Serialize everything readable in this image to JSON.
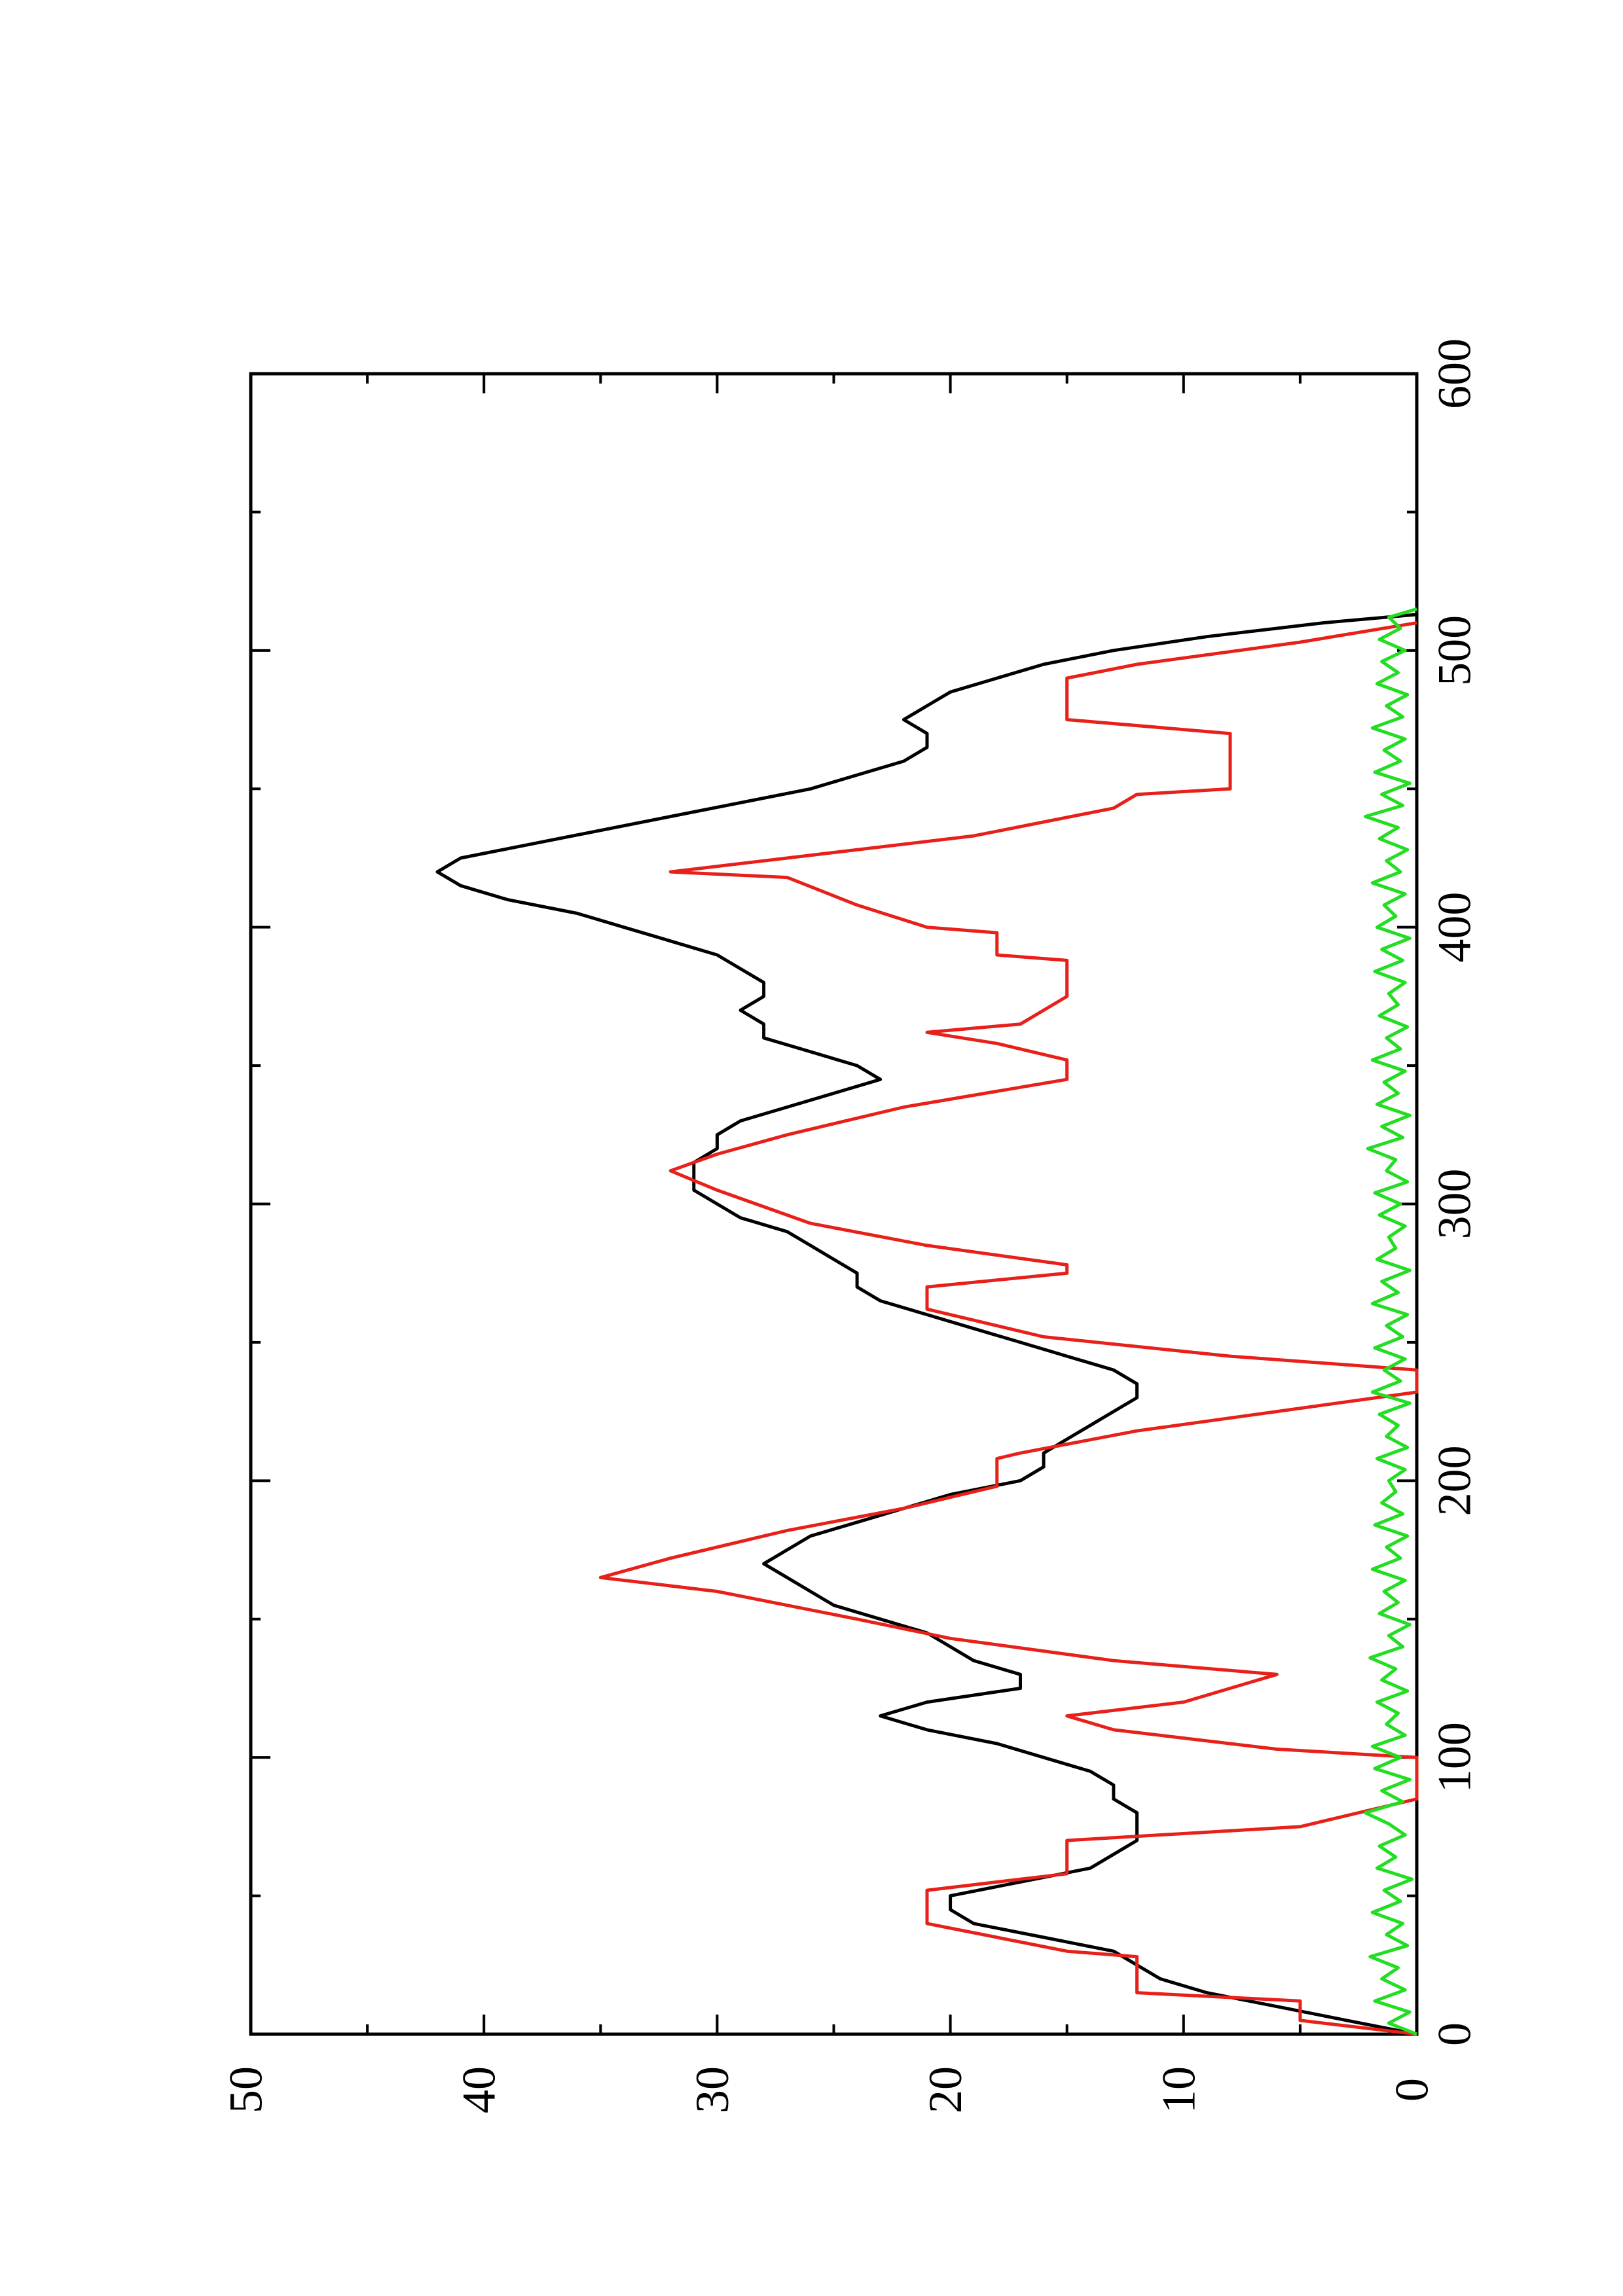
{
  "chart_data": {
    "type": "line",
    "rotation": "page-rotated-90-ccw",
    "title": "",
    "xlabel": "",
    "ylabel": "",
    "xlim": [
      0,
      600
    ],
    "ylim": [
      0,
      50
    ],
    "x_ticks": [
      "0",
      "100",
      "200",
      "300",
      "400",
      "500",
      "600"
    ],
    "y_ticks": [
      "0",
      "10",
      "20",
      "30",
      "40",
      "50"
    ],
    "grid": false,
    "legend": "none",
    "series": [
      {
        "color": "#000000",
        "style": "smooth",
        "points": [
          [
            0,
            0
          ],
          [
            5,
            3
          ],
          [
            10,
            6
          ],
          [
            15,
            9
          ],
          [
            20,
            11
          ],
          [
            25,
            12
          ],
          [
            30,
            13
          ],
          [
            35,
            16
          ],
          [
            40,
            19
          ],
          [
            45,
            20
          ],
          [
            50,
            20
          ],
          [
            55,
            17
          ],
          [
            60,
            14
          ],
          [
            65,
            13
          ],
          [
            70,
            12
          ],
          [
            75,
            12
          ],
          [
            80,
            12
          ],
          [
            85,
            13
          ],
          [
            90,
            13
          ],
          [
            95,
            14
          ],
          [
            100,
            16
          ],
          [
            105,
            18
          ],
          [
            110,
            21
          ],
          [
            115,
            23
          ],
          [
            120,
            21
          ],
          [
            125,
            17
          ],
          [
            130,
            17
          ],
          [
            135,
            19
          ],
          [
            140,
            20
          ],
          [
            145,
            21
          ],
          [
            150,
            23
          ],
          [
            155,
            25
          ],
          [
            160,
            26
          ],
          [
            165,
            27
          ],
          [
            170,
            28
          ],
          [
            175,
            27
          ],
          [
            180,
            26
          ],
          [
            185,
            24
          ],
          [
            190,
            22
          ],
          [
            195,
            20
          ],
          [
            200,
            17
          ],
          [
            205,
            16
          ],
          [
            210,
            16
          ],
          [
            215,
            15
          ],
          [
            220,
            14
          ],
          [
            225,
            13
          ],
          [
            230,
            12
          ],
          [
            235,
            12
          ],
          [
            240,
            13
          ],
          [
            245,
            15
          ],
          [
            250,
            17
          ],
          [
            255,
            19
          ],
          [
            260,
            21
          ],
          [
            265,
            23
          ],
          [
            270,
            24
          ],
          [
            275,
            24
          ],
          [
            280,
            25
          ],
          [
            285,
            26
          ],
          [
            290,
            27
          ],
          [
            295,
            29
          ],
          [
            300,
            30
          ],
          [
            305,
            31
          ],
          [
            310,
            31
          ],
          [
            315,
            31
          ],
          [
            320,
            30
          ],
          [
            325,
            30
          ],
          [
            330,
            29
          ],
          [
            335,
            27
          ],
          [
            340,
            25
          ],
          [
            345,
            23
          ],
          [
            350,
            24
          ],
          [
            355,
            26
          ],
          [
            360,
            28
          ],
          [
            365,
            28
          ],
          [
            370,
            29
          ],
          [
            375,
            28
          ],
          [
            380,
            28
          ],
          [
            385,
            29
          ],
          [
            390,
            30
          ],
          [
            395,
            32
          ],
          [
            400,
            34
          ],
          [
            405,
            36
          ],
          [
            410,
            39
          ],
          [
            415,
            41
          ],
          [
            420,
            42
          ],
          [
            425,
            41
          ],
          [
            430,
            38
          ],
          [
            435,
            35
          ],
          [
            440,
            32
          ],
          [
            445,
            29
          ],
          [
            450,
            26
          ],
          [
            455,
            24
          ],
          [
            460,
            22
          ],
          [
            465,
            21
          ],
          [
            470,
            21
          ],
          [
            475,
            22
          ],
          [
            480,
            21
          ],
          [
            485,
            20
          ],
          [
            490,
            18
          ],
          [
            495,
            16
          ],
          [
            500,
            13
          ],
          [
            505,
            9
          ],
          [
            510,
            4
          ],
          [
            513,
            0
          ]
        ]
      },
      {
        "color": "#e8201a",
        "style": "step",
        "points": [
          [
            0,
            0
          ],
          [
            5,
            5
          ],
          [
            12,
            5
          ],
          [
            15,
            12
          ],
          [
            28,
            12
          ],
          [
            30,
            15
          ],
          [
            40,
            21
          ],
          [
            52,
            21
          ],
          [
            58,
            15
          ],
          [
            70,
            15
          ],
          [
            75,
            5
          ],
          [
            85,
            0
          ],
          [
            100,
            0
          ],
          [
            103,
            6
          ],
          [
            110,
            13
          ],
          [
            115,
            15
          ],
          [
            120,
            10
          ],
          [
            130,
            6
          ],
          [
            135,
            13
          ],
          [
            143,
            20
          ],
          [
            150,
            24
          ],
          [
            160,
            30
          ],
          [
            165,
            35
          ],
          [
            172,
            32
          ],
          [
            182,
            27
          ],
          [
            190,
            22
          ],
          [
            198,
            18
          ],
          [
            208,
            18
          ],
          [
            210,
            17
          ],
          [
            218,
            12
          ],
          [
            225,
            6
          ],
          [
            232,
            0
          ],
          [
            240,
            0
          ],
          [
            245,
            8
          ],
          [
            252,
            16
          ],
          [
            262,
            21
          ],
          [
            270,
            21
          ],
          [
            275,
            15
          ],
          [
            278,
            15
          ],
          [
            285,
            21
          ],
          [
            293,
            26
          ],
          [
            305,
            30
          ],
          [
            312,
            32
          ],
          [
            318,
            30
          ],
          [
            325,
            27
          ],
          [
            335,
            22
          ],
          [
            345,
            15
          ],
          [
            352,
            15
          ],
          [
            358,
            18
          ],
          [
            362,
            21
          ],
          [
            365,
            17
          ],
          [
            375,
            15
          ],
          [
            388,
            15
          ],
          [
            390,
            18
          ],
          [
            398,
            18
          ],
          [
            400,
            21
          ],
          [
            408,
            24
          ],
          [
            418,
            27
          ],
          [
            420,
            32
          ],
          [
            425,
            27
          ],
          [
            433,
            19
          ],
          [
            443,
            13
          ],
          [
            448,
            12
          ],
          [
            450,
            8
          ],
          [
            470,
            8
          ],
          [
            475,
            15
          ],
          [
            490,
            15
          ],
          [
            495,
            12
          ],
          [
            503,
            5
          ],
          [
            510,
            0
          ]
        ]
      },
      {
        "color": "#22dd22",
        "style": "noisy",
        "points": [
          [
            0,
            0
          ],
          [
            4,
            1.2
          ],
          [
            8,
            0.3
          ],
          [
            12,
            1.8
          ],
          [
            16,
            0.5
          ],
          [
            20,
            1.5
          ],
          [
            24,
            0.8
          ],
          [
            28,
            2.0
          ],
          [
            32,
            0.4
          ],
          [
            36,
            1.3
          ],
          [
            40,
            0.6
          ],
          [
            44,
            1.9
          ],
          [
            48,
            0.7
          ],
          [
            52,
            1.4
          ],
          [
            56,
            0.2
          ],
          [
            60,
            1.7
          ],
          [
            64,
            0.9
          ],
          [
            68,
            1.6
          ],
          [
            72,
            0.5
          ],
          [
            76,
            1.2
          ],
          [
            80,
            2.2
          ],
          [
            84,
            0.6
          ],
          [
            88,
            1.5
          ],
          [
            92,
            0.3
          ],
          [
            96,
            1.8
          ],
          [
            100,
            0.7
          ],
          [
            104,
            1.9
          ],
          [
            108,
            0.5
          ],
          [
            112,
            1.3
          ],
          [
            116,
            0.8
          ],
          [
            120,
            1.7
          ],
          [
            124,
            0.4
          ],
          [
            128,
            1.5
          ],
          [
            132,
            0.9
          ],
          [
            136,
            2.0
          ],
          [
            140,
            0.6
          ],
          [
            144,
            1.2
          ],
          [
            148,
            0.3
          ],
          [
            152,
            1.6
          ],
          [
            156,
            0.8
          ],
          [
            160,
            1.4
          ],
          [
            164,
            0.5
          ],
          [
            168,
            1.9
          ],
          [
            172,
            0.7
          ],
          [
            176,
            1.3
          ],
          [
            180,
            0.4
          ],
          [
            184,
            1.8
          ],
          [
            188,
            0.6
          ],
          [
            192,
            1.5
          ],
          [
            196,
            0.9
          ],
          [
            200,
            1.2
          ],
          [
            204,
            0.5
          ],
          [
            208,
            1.7
          ],
          [
            212,
            0.4
          ],
          [
            216,
            1.3
          ],
          [
            220,
            0.8
          ],
          [
            224,
            1.6
          ],
          [
            228,
            0.3
          ],
          [
            232,
            1.9
          ],
          [
            236,
            0.7
          ],
          [
            240,
            1.4
          ],
          [
            244,
            0.5
          ],
          [
            248,
            1.8
          ],
          [
            252,
            0.6
          ],
          [
            256,
            1.3
          ],
          [
            260,
            0.4
          ],
          [
            264,
            1.9
          ],
          [
            268,
            0.8
          ],
          [
            272,
            1.5
          ],
          [
            276,
            0.3
          ],
          [
            280,
            1.7
          ],
          [
            284,
            0.9
          ],
          [
            288,
            1.2
          ],
          [
            292,
            0.5
          ],
          [
            296,
            1.6
          ],
          [
            300,
            0.7
          ],
          [
            304,
            1.8
          ],
          [
            308,
            0.4
          ],
          [
            312,
            1.3
          ],
          [
            316,
            0.9
          ],
          [
            320,
            2.1
          ],
          [
            324,
            0.6
          ],
          [
            328,
            1.5
          ],
          [
            332,
            0.3
          ],
          [
            336,
            1.7
          ],
          [
            340,
            0.8
          ],
          [
            344,
            1.4
          ],
          [
            348,
            0.5
          ],
          [
            352,
            1.9
          ],
          [
            356,
            0.7
          ],
          [
            360,
            1.3
          ],
          [
            364,
            0.4
          ],
          [
            368,
            1.6
          ],
          [
            372,
            0.8
          ],
          [
            376,
            1.2
          ],
          [
            380,
            0.5
          ],
          [
            384,
            1.8
          ],
          [
            388,
            0.6
          ],
          [
            392,
            1.5
          ],
          [
            396,
            0.3
          ],
          [
            400,
            1.7
          ],
          [
            404,
            0.9
          ],
          [
            408,
            1.4
          ],
          [
            412,
            0.5
          ],
          [
            416,
            1.9
          ],
          [
            420,
            0.7
          ],
          [
            424,
            1.3
          ],
          [
            428,
            0.4
          ],
          [
            432,
            1.6
          ],
          [
            436,
            0.8
          ],
          [
            440,
            2.2
          ],
          [
            444,
            0.6
          ],
          [
            448,
            1.5
          ],
          [
            452,
            0.3
          ],
          [
            456,
            1.8
          ],
          [
            460,
            0.7
          ],
          [
            464,
            1.4
          ],
          [
            468,
            0.5
          ],
          [
            472,
            1.9
          ],
          [
            476,
            0.6
          ],
          [
            480,
            1.3
          ],
          [
            484,
            0.4
          ],
          [
            488,
            1.7
          ],
          [
            492,
            0.8
          ],
          [
            496,
            1.5
          ],
          [
            500,
            0.5
          ],
          [
            504,
            1.6
          ],
          [
            508,
            0.7
          ],
          [
            512,
            1.2
          ],
          [
            515,
            0
          ]
        ]
      }
    ]
  }
}
